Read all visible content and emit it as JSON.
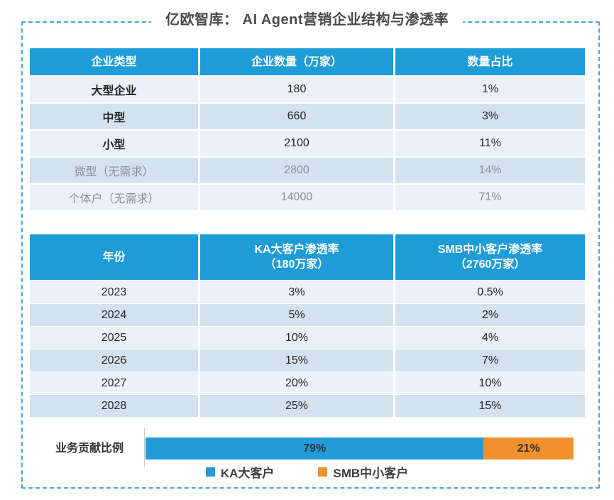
{
  "title": "亿欧智库： AI Agent营销企业结构与渗透率",
  "table1": {
    "headers": [
      "企业类型",
      "企业数量（万家）",
      "数量占比"
    ],
    "rows": [
      [
        "大型企业",
        "180",
        "1%"
      ],
      [
        "中型",
        "660",
        "3%"
      ],
      [
        "小型",
        "2100",
        "11%"
      ],
      [
        "微型（无需求）",
        "2800",
        "14%"
      ],
      [
        "个体户（无需求）",
        "14000",
        "71%"
      ]
    ]
  },
  "table2": {
    "headers": [
      {
        "line1": "年份",
        "line2": ""
      },
      {
        "line1": "KA大客户渗透率",
        "line2": "（180万家）"
      },
      {
        "line1": "SMB中小客户渗透率",
        "line2": "（2760万家）"
      }
    ],
    "rows": [
      [
        "2023",
        "3%",
        "0.5%"
      ],
      [
        "2024",
        "5%",
        "2%"
      ],
      [
        "2025",
        "10%",
        "4%"
      ],
      [
        "2026",
        "15%",
        "7%"
      ],
      [
        "2027",
        "20%",
        "10%"
      ],
      [
        "2028",
        "25%",
        "15%"
      ]
    ]
  },
  "contribution": {
    "label": "业务贡献比例",
    "segments": [
      {
        "name": "KA大客户",
        "value": 79,
        "label": "79%",
        "color": "#219CD8"
      },
      {
        "name": "SMB中小客户",
        "value": 21,
        "label": "21%",
        "color": "#F0912B"
      }
    ]
  },
  "legend": [
    {
      "label": "KA大客户",
      "color": "#219CD8"
    },
    {
      "label": "SMB中小客户",
      "color": "#F0912B"
    }
  ],
  "colors": {
    "header_blue": "#1E9CD7",
    "bar_blue": "#219CD8",
    "bar_orange": "#F0912B",
    "row_dark": "#D4E1EE",
    "row_light": "#EAF1F8",
    "border_blue": "#4BA2D8",
    "muted_text": "#8E9096",
    "title_text": "#4A4A4A"
  },
  "chart_data": [
    {
      "type": "table",
      "title": "AI Agent营销企业结构",
      "columns": [
        "企业类型",
        "企业数量（万家）",
        "数量占比"
      ],
      "rows": [
        [
          "大型企业",
          180,
          "1%"
        ],
        [
          "中型",
          660,
          "3%"
        ],
        [
          "小型",
          2100,
          "11%"
        ],
        [
          "微型（无需求）",
          2800,
          "14%"
        ],
        [
          "个体户（无需求）",
          14000,
          "71%"
        ]
      ]
    },
    {
      "type": "table",
      "title": "渗透率预测",
      "columns": [
        "年份",
        "KA大客户渗透率（180万家）",
        "SMB中小客户渗透率（2760万家）"
      ],
      "rows": [
        [
          2023,
          "3%",
          "0.5%"
        ],
        [
          2024,
          "5%",
          "2%"
        ],
        [
          2025,
          "10%",
          "4%"
        ],
        [
          2026,
          "15%",
          "7%"
        ],
        [
          2027,
          "20%",
          "10%"
        ],
        [
          2028,
          "25%",
          "15%"
        ]
      ]
    },
    {
      "type": "bar",
      "subtype": "stacked-horizontal",
      "title": "业务贡献比例",
      "categories": [
        "业务贡献比例"
      ],
      "series": [
        {
          "name": "KA大客户",
          "values": [
            79
          ],
          "color": "#219CD8"
        },
        {
          "name": "SMB中小客户",
          "values": [
            21
          ],
          "color": "#F0912B"
        }
      ],
      "unit": "%",
      "xlim": [
        0,
        100
      ],
      "legend_position": "bottom",
      "grid": false
    }
  ]
}
